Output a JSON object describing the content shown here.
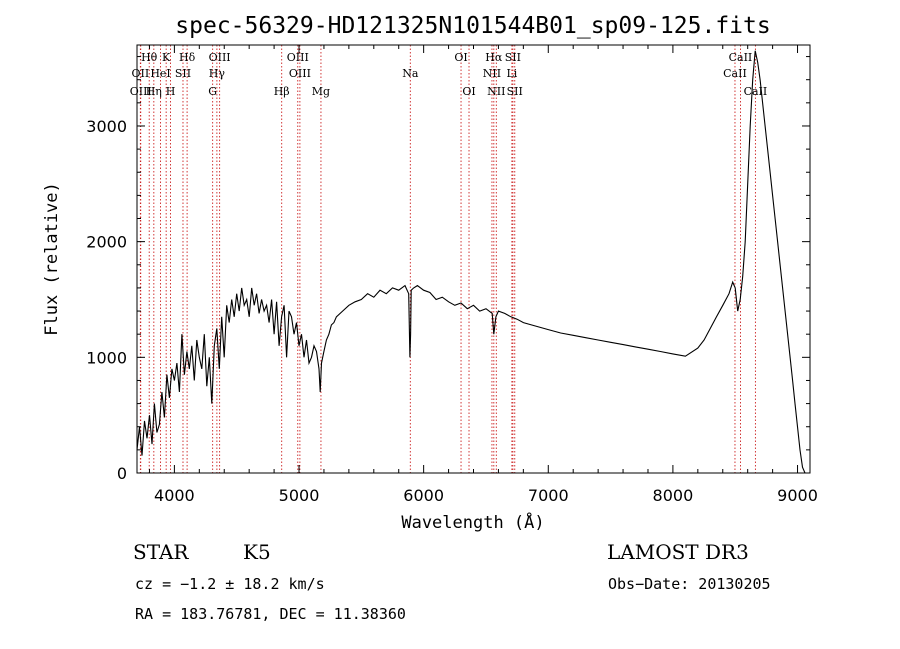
{
  "chart_data": {
    "type": "line",
    "title": "spec-56329-HD121325N101544B01_sp09-125.fits",
    "xlabel": "Wavelength (Å)",
    "ylabel": "Flux (relative)",
    "xlim": [
      3700,
      9100
    ],
    "ylim": [
      0,
      3700
    ],
    "xticks": [
      4000,
      5000,
      6000,
      7000,
      8000,
      9000
    ],
    "yticks": [
      0,
      1000,
      2000,
      3000
    ],
    "spectrum": {
      "x": [
        3700,
        3720,
        3740,
        3760,
        3780,
        3800,
        3820,
        3840,
        3860,
        3880,
        3900,
        3920,
        3940,
        3960,
        3980,
        4000,
        4020,
        4040,
        4060,
        4080,
        4100,
        4120,
        4140,
        4160,
        4180,
        4200,
        4220,
        4240,
        4260,
        4280,
        4300,
        4320,
        4340,
        4360,
        4380,
        4400,
        4420,
        4440,
        4460,
        4480,
        4500,
        4520,
        4540,
        4560,
        4580,
        4600,
        4620,
        4640,
        4660,
        4680,
        4700,
        4720,
        4740,
        4760,
        4780,
        4800,
        4820,
        4840,
        4860,
        4880,
        4900,
        4920,
        4940,
        4960,
        4980,
        5000,
        5020,
        5040,
        5060,
        5080,
        5100,
        5120,
        5140,
        5160,
        5170,
        5180,
        5200,
        5220,
        5240,
        5260,
        5280,
        5300,
        5350,
        5400,
        5450,
        5500,
        5550,
        5600,
        5650,
        5700,
        5750,
        5800,
        5850,
        5880,
        5890,
        5895,
        5900,
        5920,
        5950,
        6000,
        6050,
        6100,
        6150,
        6200,
        6250,
        6300,
        6350,
        6400,
        6450,
        6500,
        6550,
        6563,
        6580,
        6600,
        6650,
        6700,
        6750,
        6800,
        6900,
        7000,
        7100,
        7200,
        7300,
        7400,
        7500,
        7600,
        7700,
        7800,
        7900,
        8000,
        8100,
        8200,
        8250,
        8300,
        8350,
        8400,
        8450,
        8480,
        8500,
        8520,
        8540,
        8560,
        8580,
        8600,
        8620,
        8640,
        8660,
        8680,
        8700,
        8720,
        8740,
        8760,
        8780,
        8800,
        8820,
        8840,
        8860,
        8880,
        8900,
        8920,
        8940,
        8960,
        8980,
        9000,
        9020,
        9040,
        9060
      ],
      "y": [
        200,
        400,
        150,
        450,
        300,
        500,
        250,
        600,
        350,
        420,
        700,
        480,
        850,
        650,
        900,
        800,
        950,
        700,
        1200,
        850,
        1050,
        900,
        1100,
        800,
        1150,
        1000,
        900,
        1200,
        750,
        1000,
        600,
        1100,
        1250,
        900,
        1350,
        1000,
        1450,
        1300,
        1500,
        1350,
        1550,
        1400,
        1600,
        1450,
        1500,
        1350,
        1600,
        1450,
        1550,
        1380,
        1500,
        1400,
        1450,
        1300,
        1500,
        1200,
        1480,
        1100,
        1350,
        1450,
        1000,
        1400,
        1350,
        1200,
        1300,
        1100,
        1200,
        1000,
        1150,
        950,
        1000,
        1100,
        1050,
        900,
        700,
        950,
        1050,
        1150,
        1200,
        1280,
        1300,
        1350,
        1400,
        1450,
        1480,
        1500,
        1550,
        1520,
        1580,
        1550,
        1600,
        1580,
        1620,
        1550,
        1000,
        1200,
        1580,
        1600,
        1620,
        1580,
        1560,
        1500,
        1520,
        1480,
        1450,
        1470,
        1420,
        1450,
        1400,
        1420,
        1380,
        1200,
        1350,
        1400,
        1380,
        1350,
        1330,
        1300,
        1270,
        1240,
        1210,
        1190,
        1170,
        1150,
        1130,
        1110,
        1090,
        1070,
        1050,
        1030,
        1010,
        1080,
        1150,
        1250,
        1350,
        1450,
        1550,
        1650,
        1600,
        1400,
        1500,
        1700,
        2000,
        2500,
        3000,
        3400,
        3650,
        3550,
        3400,
        3200,
        3000,
        2800,
        2600,
        2400,
        2200,
        2000,
        1800,
        1600,
        1400,
        1200,
        1000,
        800,
        600,
        400,
        200,
        50,
        0
      ]
    },
    "lines": [
      {
        "label": "Hθ",
        "x": 3798,
        "row": 1
      },
      {
        "label": "OII",
        "x": 3727,
        "row": 2
      },
      {
        "label": "OIII",
        "x": 3730,
        "row": 3
      },
      {
        "label": "K",
        "x": 3934,
        "row": 1
      },
      {
        "label": "HeI",
        "x": 3889,
        "row": 2
      },
      {
        "label": "Hη",
        "x": 3835,
        "row": 3
      },
      {
        "label": "SII",
        "x": 4069,
        "row": 2
      },
      {
        "label": "H",
        "x": 3969,
        "row": 3
      },
      {
        "label": "Hδ",
        "x": 4102,
        "row": 1
      },
      {
        "label": "OIII",
        "x": 4363,
        "row": 1
      },
      {
        "label": "Hγ",
        "x": 4341,
        "row": 2
      },
      {
        "label": "G",
        "x": 4307,
        "row": 3
      },
      {
        "label": "Hβ",
        "x": 4861,
        "row": 3
      },
      {
        "label": "OIII",
        "x": 4990,
        "row": 1
      },
      {
        "label": "OIII",
        "x": 5007,
        "row": 2
      },
      {
        "label": "Mg",
        "x": 5176,
        "row": 3
      },
      {
        "label": "Na",
        "x": 5893,
        "row": 2
      },
      {
        "label": "OI",
        "x": 6300,
        "row": 1
      },
      {
        "label": "OI",
        "x": 6364,
        "row": 3
      },
      {
        "label": "Hα",
        "x": 6563,
        "row": 1
      },
      {
        "label": "NII",
        "x": 6548,
        "row": 2
      },
      {
        "label": "NII",
        "x": 6583,
        "row": 3
      },
      {
        "label": "SII",
        "x": 6716,
        "row": 1
      },
      {
        "label": "Li",
        "x": 6708,
        "row": 2
      },
      {
        "label": "SII",
        "x": 6731,
        "row": 3
      },
      {
        "label": "CaII",
        "x": 8542,
        "row": 1
      },
      {
        "label": "CaII",
        "x": 8498,
        "row": 2
      },
      {
        "label": "CaII",
        "x": 8662,
        "row": 3
      }
    ]
  },
  "info": {
    "object_type": "STAR",
    "subclass": "K5",
    "survey": "LAMOST DR3",
    "cz": "cz = −1.2 ± 18.2 km/s",
    "obs_date": "Obs−Date: 20130205",
    "coords": "RA = 183.76781, DEC =  11.38360"
  },
  "colors": {
    "spectrum": "#000000",
    "marker_lines": "#cc2222",
    "axes": "#000000"
  }
}
